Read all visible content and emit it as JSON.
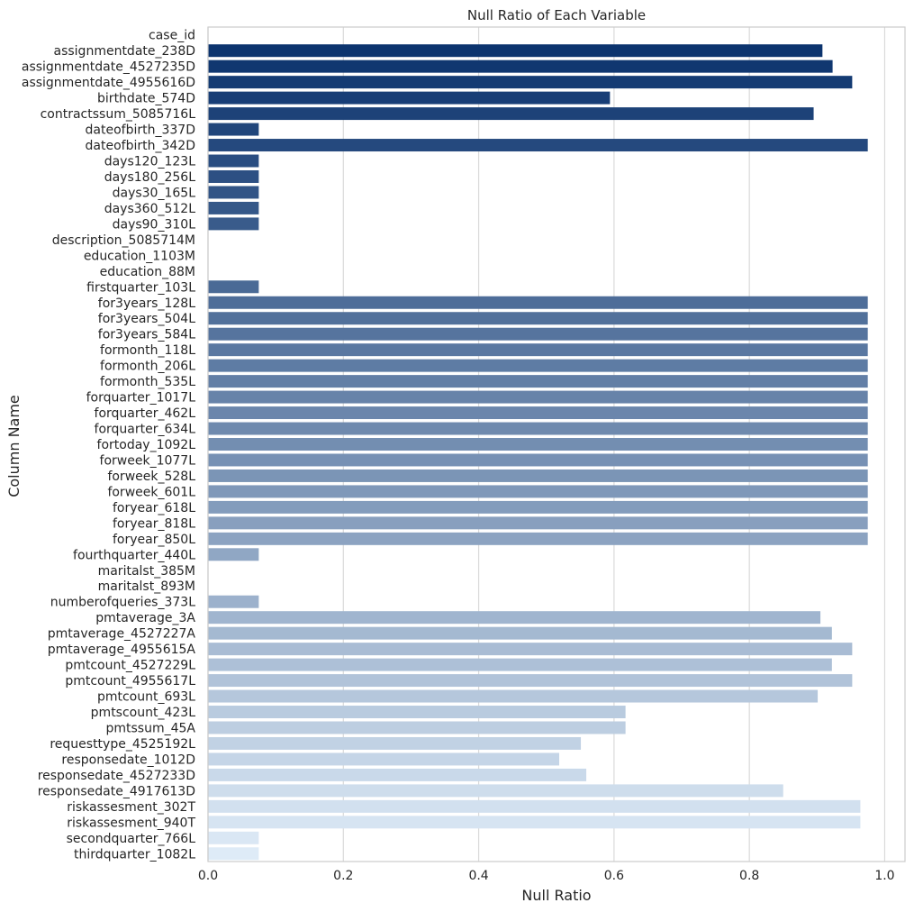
{
  "chart_data": {
    "type": "bar",
    "orientation": "horizontal",
    "title": "Null Ratio of Each Variable",
    "xlabel": "Null Ratio",
    "ylabel": "Column Name",
    "xlim": [
      0,
      1.03
    ],
    "xticks": [
      0.0,
      0.2,
      0.4,
      0.6,
      0.8,
      1.0
    ],
    "xtick_labels": [
      "0.0",
      "0.2",
      "0.4",
      "0.6",
      "0.8",
      "1.0"
    ],
    "grid": "vertical",
    "palette": [
      "#08306b",
      "#deebf7"
    ],
    "categories": [
      "case_id",
      "assignmentdate_238D",
      "assignmentdate_4527235D",
      "assignmentdate_4955616D",
      "birthdate_574D",
      "contractssum_5085716L",
      "dateofbirth_337D",
      "dateofbirth_342D",
      "days120_123L",
      "days180_256L",
      "days30_165L",
      "days360_512L",
      "days90_310L",
      "description_5085714M",
      "education_1103M",
      "education_88M",
      "firstquarter_103L",
      "for3years_128L",
      "for3years_504L",
      "for3years_584L",
      "formonth_118L",
      "formonth_206L",
      "formonth_535L",
      "forquarter_1017L",
      "forquarter_462L",
      "forquarter_634L",
      "fortoday_1092L",
      "forweek_1077L",
      "forweek_528L",
      "forweek_601L",
      "foryear_618L",
      "foryear_818L",
      "foryear_850L",
      "fourthquarter_440L",
      "maritalst_385M",
      "maritalst_893M",
      "numberofqueries_373L",
      "pmtaverage_3A",
      "pmtaverage_4527227A",
      "pmtaverage_4955615A",
      "pmtcount_4527229L",
      "pmtcount_4955617L",
      "pmtcount_693L",
      "pmtscount_423L",
      "pmtssum_45A",
      "requesttype_4525192L",
      "responsedate_1012D",
      "responsedate_4527233D",
      "responsedate_4917613D",
      "riskassesment_302T",
      "riskassesment_940T",
      "secondquarter_766L",
      "thirdquarter_1082L"
    ],
    "values": [
      0.0,
      0.908,
      0.923,
      0.952,
      0.594,
      0.895,
      0.075,
      0.975,
      0.075,
      0.075,
      0.075,
      0.075,
      0.075,
      0.0,
      0.0,
      0.0,
      0.075,
      0.975,
      0.975,
      0.975,
      0.975,
      0.975,
      0.975,
      0.975,
      0.975,
      0.975,
      0.975,
      0.975,
      0.975,
      0.975,
      0.975,
      0.975,
      0.975,
      0.075,
      0.0,
      0.0,
      0.075,
      0.905,
      0.922,
      0.952,
      0.922,
      0.952,
      0.901,
      0.617,
      0.617,
      0.551,
      0.519,
      0.559,
      0.85,
      0.964,
      0.964,
      0.075,
      0.075
    ]
  }
}
